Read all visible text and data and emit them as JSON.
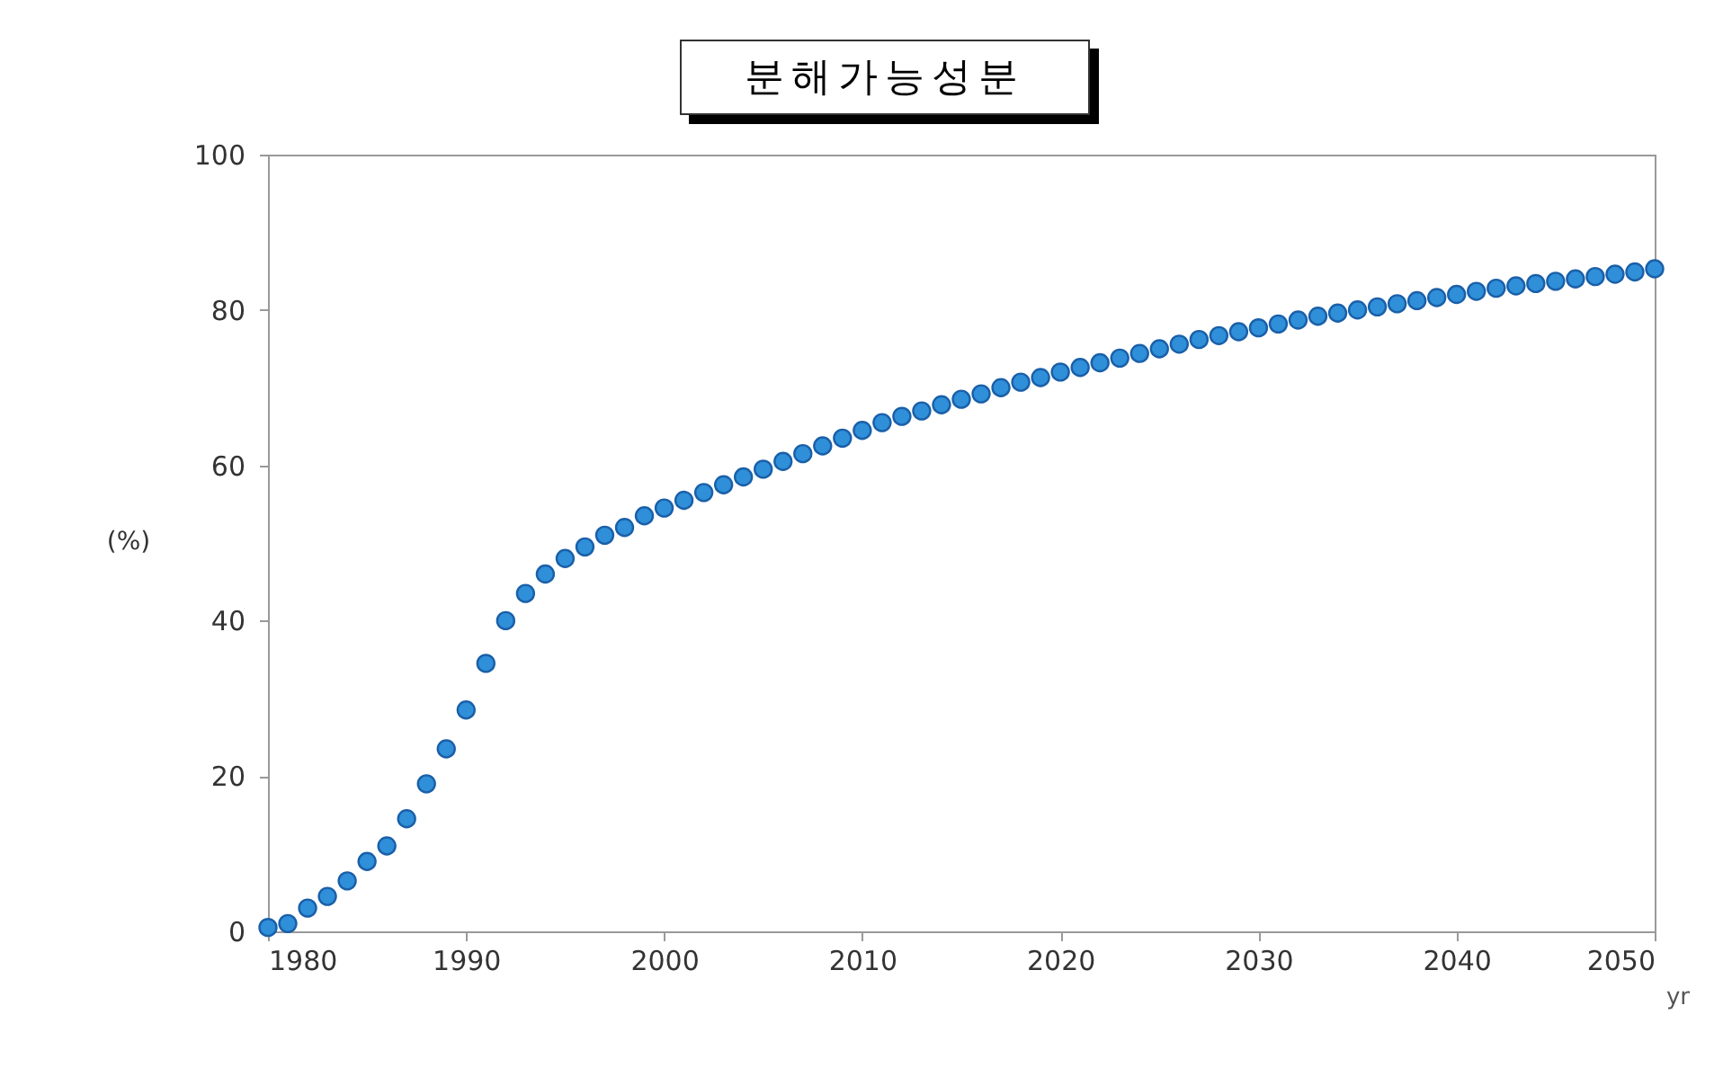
{
  "chart_data": {
    "type": "scatter",
    "title": "분해가능성분",
    "ylabel": "(%)",
    "xlabel": "yr",
    "x": [
      1980,
      1981,
      1982,
      1983,
      1984,
      1985,
      1986,
      1987,
      1988,
      1989,
      1990,
      1991,
      1992,
      1993,
      1994,
      1995,
      1996,
      1997,
      1998,
      1999,
      2000,
      2001,
      2002,
      2003,
      2004,
      2005,
      2006,
      2007,
      2008,
      2009,
      2010,
      2011,
      2012,
      2013,
      2014,
      2015,
      2016,
      2017,
      2018,
      2019,
      2020,
      2021,
      2022,
      2023,
      2024,
      2025,
      2026,
      2027,
      2028,
      2029,
      2030,
      2031,
      2032,
      2033,
      2034,
      2035,
      2036,
      2037,
      2038,
      2039,
      2040,
      2041,
      2042,
      2043,
      2044,
      2045,
      2046,
      2047,
      2048,
      2049,
      2050
    ],
    "series": [
      {
        "color": "#2f8fd8",
        "values": [
          0.5,
          1,
          3,
          4.5,
          6.5,
          9,
          11,
          14.5,
          19,
          23.5,
          28.5,
          34.5,
          40,
          43.5,
          46,
          48,
          49.5,
          51,
          52,
          53.5,
          54.5,
          55.5,
          56.5,
          57.5,
          58.5,
          59.5,
          60.5,
          61.5,
          62.5,
          63.5,
          64.5,
          65.5,
          66.3,
          67,
          67.8,
          68.5,
          69.2,
          70,
          70.7,
          71.3,
          72,
          72.6,
          73.2,
          73.8,
          74.4,
          75,
          75.6,
          76.2,
          76.7,
          77.2,
          77.7,
          78.2,
          78.7,
          79.2,
          79.6,
          80,
          80.4,
          80.8,
          81.2,
          81.6,
          82,
          82.4,
          82.8,
          83.1,
          83.4,
          83.7,
          84,
          84.3,
          84.6,
          84.9,
          85.3
        ]
      }
    ],
    "marker": "circle",
    "grid": false,
    "legend": false,
    "xlim": [
      1980,
      2050
    ],
    "xticks": [
      1980,
      1990,
      2000,
      2010,
      2020,
      2030,
      2040,
      2050
    ],
    "ylim": [
      0,
      100
    ],
    "yticks": [
      0,
      20,
      40,
      60,
      80,
      100
    ]
  }
}
